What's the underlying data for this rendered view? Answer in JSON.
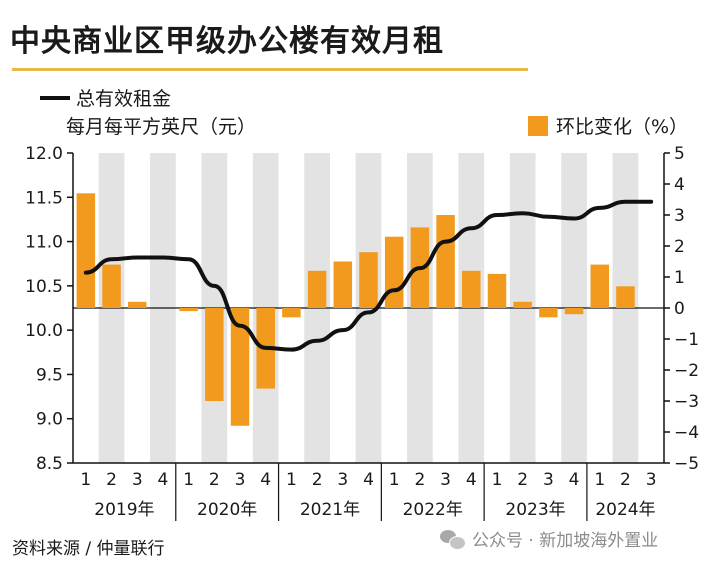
{
  "title": "中央商业区甲级办公楼有效月租",
  "legend": {
    "line_label": "总有效租金",
    "left_unit": "每月每平方英尺（元）",
    "bar_label": "环比变化（%）"
  },
  "source": "资料来源 / 仲量联行",
  "watermark": "公众号 · 新加坡海外置业",
  "colors": {
    "bar": "#f29a1e",
    "line": "#111111",
    "shade": "#e3e3e3",
    "accent_rule": "#e8b84a"
  },
  "chart_data": {
    "type": "bar+line",
    "categories": [
      "1",
      "2",
      "3",
      "4",
      "1",
      "2",
      "3",
      "4",
      "1",
      "2",
      "3",
      "4",
      "1",
      "2",
      "3",
      "4",
      "1",
      "2",
      "3",
      "4",
      "1",
      "2",
      "3"
    ],
    "years": [
      "2019年",
      "2020年",
      "2021年",
      "2022年",
      "2023年",
      "2024年"
    ],
    "year_quarter_counts": [
      4,
      4,
      4,
      4,
      4,
      3
    ],
    "series": [
      {
        "name": "环比变化（%）",
        "type": "bar",
        "axis": "right",
        "values": [
          3.7,
          1.4,
          0.2,
          0,
          -0.1,
          -3.0,
          -3.8,
          -2.6,
          -0.3,
          1.2,
          1.5,
          1.8,
          2.3,
          2.6,
          3.0,
          1.2,
          1.1,
          0.2,
          -0.3,
          -0.2,
          1.4,
          0.7,
          0
        ]
      },
      {
        "name": "总有效租金",
        "type": "line",
        "axis": "left",
        "values": [
          10.65,
          10.8,
          10.82,
          10.82,
          10.8,
          10.5,
          10.05,
          9.8,
          9.78,
          9.88,
          10.0,
          10.2,
          10.45,
          10.7,
          11.0,
          11.15,
          11.3,
          11.32,
          11.28,
          11.26,
          11.38,
          11.45,
          11.45
        ]
      }
    ],
    "left_axis": {
      "ylim": [
        8.5,
        12.0
      ],
      "ticks": [
        "8.5",
        "9.0",
        "9.5",
        "10.0",
        "10.5",
        "11.0",
        "11.5",
        "12.0"
      ]
    },
    "right_axis": {
      "ylim": [
        -5,
        5
      ],
      "ticks": [
        "−5",
        "−4",
        "−3",
        "−2",
        "−1",
        "0",
        "1",
        "2",
        "3",
        "4",
        "5"
      ]
    },
    "shading": "alternating-quarter-columns",
    "legend_placement": "top"
  }
}
